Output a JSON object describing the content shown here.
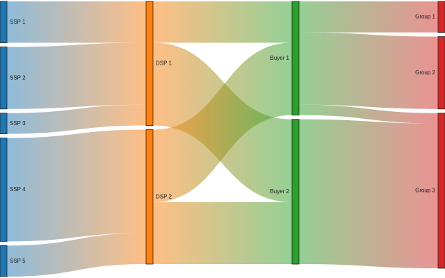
{
  "chart_data": {
    "type": "sankey",
    "title": "",
    "columns": [
      [
        "SSP 1",
        "SSP 2",
        "SSP 3",
        "SSP 4",
        "SSP 5"
      ],
      [
        "DSP 1",
        "DSP 2"
      ],
      [
        "Buyer 1",
        "Buyer 2"
      ],
      [
        "Group 1",
        "Group 2",
        "Group 3"
      ]
    ],
    "node_colors": {
      "SSP 1": "#1f77b4",
      "SSP 2": "#1f77b4",
      "SSP 3": "#1f77b4",
      "SSP 4": "#1f77b4",
      "SSP 5": "#1f77b4",
      "DSP 1": "#ff7f0e",
      "DSP 2": "#ff7f0e",
      "Buyer 1": "#2ca02c",
      "Buyer 2": "#2ca02c",
      "Group 1": "#d62728",
      "Group 2": "#d62728",
      "Group 3": "#d62728"
    },
    "links": [
      {
        "source": "SSP 1",
        "target": "DSP 1",
        "value": 20
      },
      {
        "source": "SSP 2",
        "target": "DSP 1",
        "value": 30
      },
      {
        "source": "SSP 3",
        "target": "DSP 1",
        "value": 10
      },
      {
        "source": "SSP 4",
        "target": "DSP 2",
        "value": 50
      },
      {
        "source": "SSP 5",
        "target": "DSP 2",
        "value": 15
      },
      {
        "source": "DSP 1",
        "target": "Buyer 1",
        "value": 20
      },
      {
        "source": "DSP 1",
        "target": "Buyer 2",
        "value": 40
      },
      {
        "source": "DSP 2",
        "target": "Buyer 1",
        "value": 35
      },
      {
        "source": "DSP 2",
        "target": "Buyer 2",
        "value": 30
      },
      {
        "source": "Buyer 1",
        "target": "Group 1",
        "value": 15
      },
      {
        "source": "Buyer 1",
        "target": "Group 2",
        "value": 35
      },
      {
        "source": "Buyer 1",
        "target": "Group 3",
        "value": 5
      },
      {
        "source": "Buyer 2",
        "target": "Group 3",
        "value": 70
      }
    ]
  }
}
